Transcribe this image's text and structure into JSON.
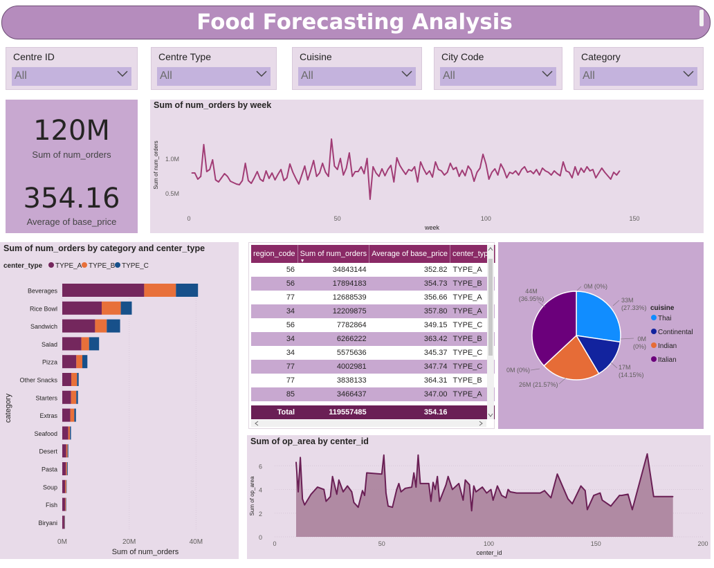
{
  "title": "Food Forecasting Analysis",
  "slicers": [
    {
      "label": "Centre ID",
      "value": "All"
    },
    {
      "label": "Centre Type",
      "value": "All"
    },
    {
      "label": "Cuisine",
      "value": "All"
    },
    {
      "label": "City Code",
      "value": "All"
    },
    {
      "label": "Category",
      "value": "All"
    }
  ],
  "cards": {
    "orders_value": "120M",
    "orders_label": "Sum of num_orders",
    "price_value": "354.16",
    "price_label": "Average of base_price"
  },
  "table": {
    "headers": [
      "region_code",
      "Sum of num_orders",
      "Average of base_price",
      "center_type"
    ],
    "rows": [
      [
        "56",
        "34843144",
        "352.82",
        "TYPE_A"
      ],
      [
        "56",
        "17894183",
        "354.73",
        "TYPE_B"
      ],
      [
        "77",
        "12688539",
        "356.66",
        "TYPE_A"
      ],
      [
        "34",
        "12209875",
        "357.80",
        "TYPE_A"
      ],
      [
        "56",
        "7782864",
        "349.15",
        "TYPE_C"
      ],
      [
        "34",
        "6266222",
        "363.42",
        "TYPE_B"
      ],
      [
        "34",
        "5575636",
        "345.37",
        "TYPE_C"
      ],
      [
        "77",
        "4002981",
        "347.74",
        "TYPE_C"
      ],
      [
        "77",
        "3838133",
        "364.31",
        "TYPE_B"
      ],
      [
        "85",
        "3466437",
        "347.00",
        "TYPE_A"
      ]
    ],
    "total": [
      "Total",
      "119557485",
      "354.16",
      ""
    ]
  },
  "colors": {
    "type_a": "#74275d",
    "type_b": "#e8703a",
    "type_c": "#17508a",
    "line": "#a13c75",
    "area_fill": "#ad869f",
    "area_line": "#6a1f55"
  },
  "chart_data": [
    {
      "type": "line",
      "title": "Sum of num_orders by week",
      "xlabel": "week",
      "ylabel": "Sum of num_orders",
      "xlim": [
        0,
        160
      ],
      "ylim": [
        0.3,
        1.55
      ],
      "xticks": [
        "0",
        "50",
        "100",
        "150"
      ],
      "yticks": [
        "0.5M",
        "1.0M"
      ],
      "x": [
        1,
        2,
        3,
        4,
        5,
        6,
        7,
        8,
        9,
        10,
        11,
        12,
        13,
        14,
        15,
        16,
        17,
        18,
        19,
        20,
        21,
        22,
        23,
        24,
        25,
        26,
        27,
        28,
        29,
        30,
        31,
        32,
        33,
        34,
        35,
        36,
        37,
        38,
        39,
        40,
        41,
        42,
        43,
        44,
        45,
        46,
        47,
        48,
        49,
        50,
        51,
        52,
        53,
        54,
        55,
        56,
        57,
        58,
        59,
        60,
        61,
        62,
        63,
        64,
        65,
        66,
        67,
        68,
        69,
        70,
        71,
        72,
        73,
        74,
        75,
        76,
        77,
        78,
        79,
        80,
        81,
        82,
        83,
        84,
        85,
        86,
        87,
        88,
        89,
        90,
        91,
        92,
        93,
        94,
        95,
        96,
        97,
        98,
        99,
        100,
        101,
        102,
        103,
        104,
        105,
        106,
        107,
        108,
        109,
        110,
        111,
        112,
        113,
        114,
        115,
        116,
        117,
        118,
        119,
        120,
        121,
        122,
        123,
        124,
        125,
        126,
        127,
        128,
        129,
        130,
        131,
        132,
        133,
        134,
        135,
        136,
        137,
        138,
        139,
        140,
        141,
        142,
        143,
        144,
        145
      ],
      "series": [
        {
          "values": [
            0.79,
            0.79,
            0.7,
            0.74,
            1.2,
            0.81,
            0.84,
            0.98,
            0.69,
            0.66,
            0.72,
            0.78,
            0.74,
            0.67,
            0.65,
            0.63,
            0.62,
            0.68,
            0.93,
            0.68,
            0.64,
            0.72,
            0.81,
            0.7,
            0.67,
            0.82,
            0.71,
            0.79,
            0.69,
            0.77,
            0.84,
            0.68,
            0.72,
            0.92,
            0.8,
            0.71,
            0.63,
            0.76,
            0.89,
            0.69,
            0.82,
            0.97,
            0.74,
            0.79,
            0.93,
            0.8,
            0.74,
            1.28,
            0.89,
            0.84,
            1.0,
            0.76,
            0.86,
            1.08,
            0.74,
            0.81,
            0.81,
            0.88,
            0.78,
            1.0,
            0.41,
            0.88,
            0.79,
            0.74,
            0.85,
            0.75,
            0.84,
            0.9,
            0.66,
            1.01,
            0.9,
            0.83,
            0.77,
            0.84,
            0.82,
            0.88,
            0.66,
            0.95,
            0.85,
            0.77,
            0.82,
            0.73,
            0.95,
            0.84,
            0.82,
            0.76,
            0.8,
            0.93,
            0.84,
            0.87,
            0.74,
            0.83,
            0.75,
            0.89,
            0.83,
            0.67,
            0.8,
            0.86,
            1.06,
            0.92,
            0.7,
            0.8,
            0.85,
            0.76,
            0.92,
            0.84,
            0.72,
            0.8,
            0.78,
            0.82,
            0.76,
            0.84,
            0.88,
            0.8,
            0.82,
            0.78,
            0.84,
            0.76,
            0.86,
            0.82,
            0.8,
            0.76,
            0.82,
            0.78,
            0.75,
            0.95,
            0.82,
            0.8,
            0.72,
            0.88,
            0.76,
            0.86,
            0.8,
            0.88,
            0.82,
            0.84,
            0.72,
            0.79,
            0.86,
            0.8,
            0.75,
            0.7,
            0.8,
            0.76,
            0.82
          ]
        }
      ]
    },
    {
      "type": "bar",
      "title": "Sum of num_orders by category and center_type",
      "xlabel": "Sum of num_orders",
      "ylabel": "category",
      "legend_title": "center_type",
      "legend": "top-left",
      "xlim": [
        0,
        42
      ],
      "xticks": [
        "0M",
        "20M",
        "40M"
      ],
      "categories": [
        "Beverages",
        "Rice Bowl",
        "Sandwich",
        "Salad",
        "Pizza",
        "Other Snacks",
        "Starters",
        "Extras",
        "Seafood",
        "Desert",
        "Pasta",
        "Soup",
        "Fish",
        "Biryani"
      ],
      "series": [
        {
          "name": "TYPE_A",
          "values": [
            24.5,
            11.8,
            9.8,
            5.7,
            4.2,
            2.7,
            2.6,
            2.4,
            1.8,
            1.2,
            1.1,
            0.9,
            0.9,
            0.6
          ]
        },
        {
          "name": "TYPE_B",
          "values": [
            9.5,
            5.7,
            3.5,
            2.3,
            1.8,
            1.7,
            1.6,
            1.2,
            0.5,
            0.4,
            0.3,
            0.3,
            0.2,
            0.1
          ]
        },
        {
          "name": "TYPE_C",
          "values": [
            6.6,
            3.3,
            4.0,
            3.0,
            1.5,
            0.5,
            0.5,
            0.5,
            0.3,
            0.2,
            0.2,
            0.1,
            0.1,
            0.1
          ]
        }
      ]
    },
    {
      "type": "pie",
      "legend_title": "cuisine",
      "legend": "right",
      "labels": [
        "Thai",
        "Continental",
        "Indian",
        "Italian"
      ],
      "values": [
        27.33,
        14.15,
        21.57,
        36.95
      ],
      "slice_colors": [
        "#118dff",
        "#12239e",
        "#e66c37",
        "#6b007b"
      ],
      "data_labels": [
        "33M\n(27.33%)",
        "17M\n(14.15%)",
        "26M (21.57%)",
        "44M\n(36.95%)"
      ],
      "zero_labels": [
        "0M (0%)",
        "0M\n(0%)",
        "0M (0%)"
      ]
    },
    {
      "type": "area",
      "title": "Sum of op_area by center_id",
      "xlabel": "center_id",
      "ylabel": "Sum of op_area",
      "xlim": [
        0,
        200
      ],
      "ylim": [
        0,
        7.3
      ],
      "xticks": [
        "0",
        "50",
        "100",
        "150",
        "200"
      ],
      "yticks": [
        "0",
        "2",
        "4",
        "6"
      ],
      "x": [
        10,
        11,
        12,
        13,
        14,
        15,
        17,
        20,
        23,
        24,
        26,
        27,
        29,
        30,
        32,
        34,
        36,
        37,
        39,
        41,
        42,
        43,
        50,
        51,
        52,
        53,
        55,
        57,
        58,
        59,
        61,
        64,
        65,
        66,
        67,
        68,
        72,
        73,
        74,
        75,
        76,
        77,
        80,
        81,
        83,
        86,
        88,
        89,
        91,
        92,
        93,
        94,
        97,
        99,
        101,
        102,
        104,
        106,
        108,
        109,
        110,
        113,
        124,
        126,
        129,
        132,
        137,
        139,
        143,
        145,
        146,
        149,
        152,
        153,
        157,
        161,
        162,
        165,
        167,
        174,
        177,
        179,
        186
      ],
      "series": [
        {
          "values": [
            6.3,
            3.8,
            6.7,
            3.2,
            2.7,
            3.0,
            3.6,
            4.2,
            4.0,
            3.0,
            3.4,
            5.1,
            3.6,
            4.8,
            3.8,
            4.3,
            3.8,
            2.9,
            2.5,
            3.9,
            3.5,
            5.4,
            5.3,
            6.9,
            3.7,
            2.6,
            2.5,
            4.0,
            4.5,
            3.8,
            4.1,
            4.2,
            5.4,
            4.2,
            6.9,
            4.5,
            4.5,
            3.0,
            4.6,
            4.0,
            5.1,
            3.0,
            4.4,
            5.1,
            4.0,
            4.5,
            3.1,
            4.8,
            4.4,
            2.2,
            4.3,
            3.8,
            4.2,
            3.7,
            4.0,
            3.1,
            4.3,
            3.5,
            3.3,
            4.0,
            3.8,
            3.7,
            3.7,
            3.9,
            3.3,
            5.3,
            3.2,
            2.8,
            4.3,
            3.9,
            2.3,
            3.5,
            3.7,
            3.1,
            2.6,
            3.5,
            3.5,
            3.6,
            2.3,
            7.0,
            3.4,
            3.4,
            3.4
          ]
        }
      ]
    }
  ]
}
